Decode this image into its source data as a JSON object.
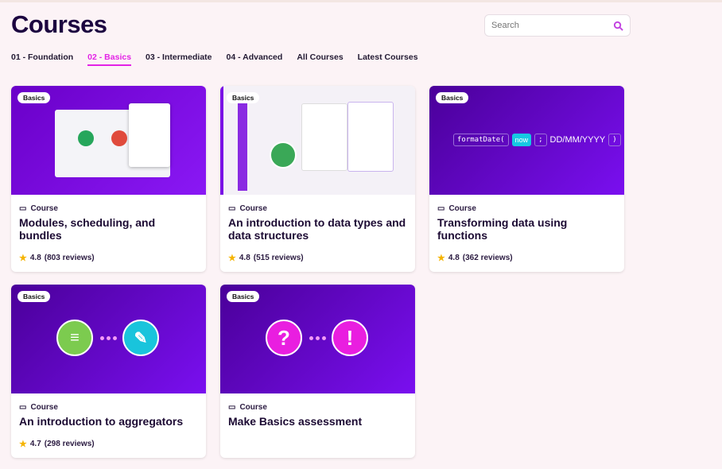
{
  "page": {
    "title": "Courses"
  },
  "search": {
    "placeholder": "Search",
    "icon": "search-icon",
    "icon_color": "#c13fe0"
  },
  "tabs": [
    {
      "label": "01 - Foundation"
    },
    {
      "label": "02 - Basics",
      "active": true
    },
    {
      "label": "03 - Intermediate"
    },
    {
      "label": "04 - Advanced"
    },
    {
      "label": "All Courses"
    },
    {
      "label": "Latest Courses"
    }
  ],
  "accent": "#e323e6",
  "cards": [
    {
      "badge": "Basics",
      "kind": "Course",
      "title": "Modules, scheduling, and bundles",
      "rating": "4.8",
      "reviews": "(803 reviews)"
    },
    {
      "badge": "Basics",
      "kind": "Course",
      "title": "An introduction to data types and data structures",
      "rating": "4.8",
      "reviews": "(515 reviews)"
    },
    {
      "badge": "Basics",
      "kind": "Course",
      "title": "Transforming data using functions",
      "rating": "4.8",
      "reviews": "(362 reviews)",
      "thumb": {
        "func": "formatDate(",
        "arg": "now",
        "sep": ";",
        "format": "DD/MM/YYYY",
        "close": ")"
      }
    },
    {
      "badge": "Basics",
      "kind": "Course",
      "title": "An introduction to aggregators",
      " rating": "4.7",
      "rating": "4.7",
      "reviews": "(298 reviews)"
    },
    {
      "badge": "Basics",
      "kind": "Course",
      "title": "Make Basics assessment",
      "thumb": {
        "left": "?",
        "right": "!"
      }
    }
  ]
}
